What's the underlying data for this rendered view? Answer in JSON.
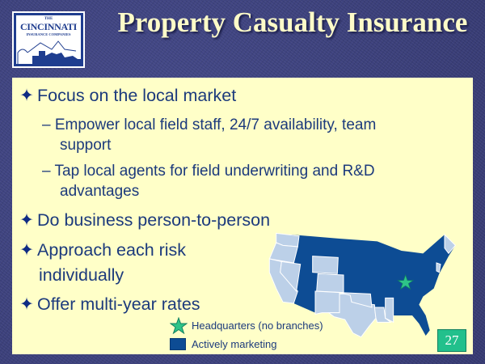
{
  "logo": {
    "line1": "THE",
    "line2": "CINCINNATI",
    "line3": "INSURANCE COMPANIES"
  },
  "title": "Property Casualty Insurance",
  "bullets": [
    {
      "text": "Focus on the local market",
      "subs": [
        {
          "line1": "Empower local field staff, 24/7 availability, team",
          "line2": "support"
        },
        {
          "line1": "Tap local agents for field underwriting and R&D",
          "line2": "advantages"
        }
      ]
    },
    {
      "text": "Do business person-to-person"
    },
    {
      "text": "Approach each risk",
      "text2": "individually"
    },
    {
      "text": "Offer multi-year rates"
    }
  ],
  "bullet_marker": "✦",
  "sub_marker": "–",
  "legend": {
    "headquarters": "Headquarters (no branches)",
    "active": "Actively marketing"
  },
  "colors": {
    "active": "#0d4c94",
    "inactive": "#bcd0e8",
    "star": "#2ec488",
    "panel": "#ffffc8",
    "title": "#fdfbc8"
  },
  "page_number": "27"
}
